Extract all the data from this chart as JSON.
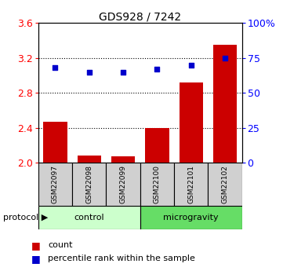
{
  "title": "GDS928 / 7242",
  "samples": [
    "GSM22097",
    "GSM22098",
    "GSM22099",
    "GSM22100",
    "GSM22101",
    "GSM22102"
  ],
  "bar_values": [
    2.47,
    2.08,
    2.07,
    2.4,
    2.92,
    3.35
  ],
  "percentile_values": [
    68,
    65,
    65,
    67,
    70,
    75
  ],
  "ylim_left": [
    2.0,
    3.6
  ],
  "ylim_right": [
    0,
    100
  ],
  "yticks_left": [
    2.0,
    2.4,
    2.8,
    3.2,
    3.6
  ],
  "yticks_right": [
    0,
    25,
    50,
    75,
    100
  ],
  "ytick_labels_right": [
    "0",
    "25",
    "50",
    "75",
    "100%"
  ],
  "bar_color": "#cc0000",
  "dot_color": "#0000cc",
  "bar_width": 0.7,
  "control_color": "#ccffcc",
  "micro_color": "#66dd66",
  "sample_box_color": "#d0d0d0",
  "dotted_grid_values": [
    2.4,
    2.8,
    3.2
  ],
  "title_fontsize": 10,
  "axis_fontsize": 9,
  "sample_fontsize": 6.5,
  "protocol_fontsize": 8,
  "legend_fontsize": 8
}
